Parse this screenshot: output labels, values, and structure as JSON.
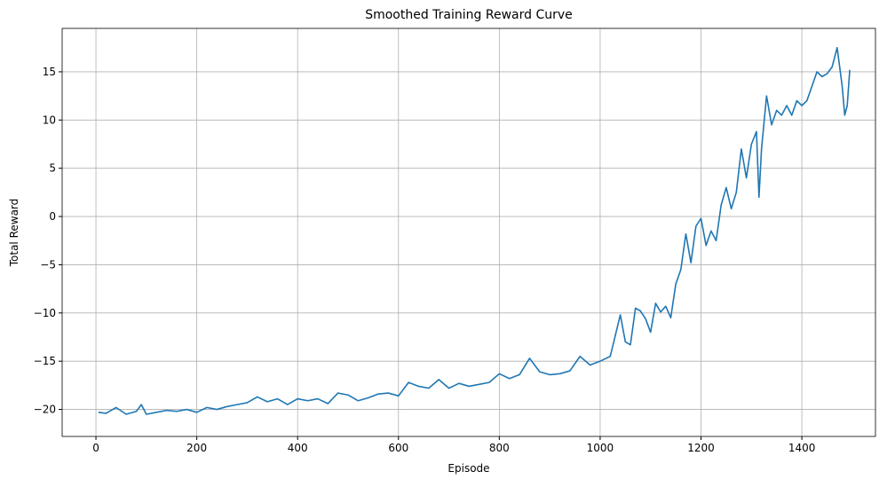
{
  "chart_data": {
    "type": "line",
    "title": "Smoothed Training Reward Curve",
    "x_label": "Episode",
    "y_label": "Total Reward",
    "x": [
      5,
      20,
      40,
      60,
      80,
      90,
      100,
      120,
      140,
      160,
      180,
      200,
      220,
      240,
      260,
      280,
      300,
      320,
      340,
      360,
      380,
      400,
      420,
      440,
      460,
      480,
      500,
      520,
      540,
      560,
      580,
      600,
      620,
      640,
      660,
      680,
      700,
      720,
      740,
      760,
      780,
      800,
      820,
      840,
      860,
      880,
      900,
      920,
      940,
      960,
      980,
      1000,
      1020,
      1040,
      1050,
      1060,
      1070,
      1080,
      1090,
      1100,
      1110,
      1120,
      1130,
      1140,
      1150,
      1160,
      1170,
      1180,
      1190,
      1200,
      1210,
      1220,
      1230,
      1240,
      1250,
      1260,
      1270,
      1280,
      1290,
      1300,
      1310,
      1315,
      1320,
      1330,
      1340,
      1350,
      1360,
      1370,
      1380,
      1390,
      1400,
      1410,
      1420,
      1430,
      1440,
      1450,
      1460,
      1470,
      1475,
      1480,
      1485,
      1490,
      1495
    ],
    "values": [
      -20.3,
      -20.4,
      -19.8,
      -20.5,
      -20.2,
      -19.5,
      -20.5,
      -20.3,
      -20.1,
      -20.2,
      -20.0,
      -20.3,
      -19.8,
      -20.0,
      -19.7,
      -19.5,
      -19.3,
      -18.7,
      -19.2,
      -18.9,
      -19.5,
      -18.9,
      -19.1,
      -18.9,
      -19.4,
      -18.3,
      -18.5,
      -19.1,
      -18.8,
      -18.4,
      -18.3,
      -18.6,
      -17.2,
      -17.6,
      -17.8,
      -16.9,
      -17.8,
      -17.3,
      -17.6,
      -17.4,
      -17.2,
      -16.3,
      -16.8,
      -16.4,
      -14.7,
      -16.1,
      -16.4,
      -16.3,
      -16.0,
      -14.5,
      -15.4,
      -15.0,
      -14.5,
      -10.2,
      -13.0,
      -13.3,
      -9.5,
      -9.8,
      -10.6,
      -12.0,
      -9.0,
      -9.9,
      -9.3,
      -10.5,
      -7.0,
      -5.5,
      -1.8,
      -4.8,
      -1.0,
      -0.2,
      -3.0,
      -1.5,
      -2.5,
      1.2,
      3.0,
      0.8,
      2.5,
      7.0,
      4.0,
      7.5,
      8.8,
      2.0,
      7.0,
      12.5,
      9.5,
      11.0,
      10.5,
      11.5,
      10.5,
      12.0,
      11.5,
      12.0,
      13.5,
      15.0,
      14.5,
      14.8,
      15.5,
      17.5,
      15.5,
      13.5,
      10.5,
      11.5,
      15.2
    ],
    "color": "#1f77b4",
    "xlim": [
      -67,
      1546
    ],
    "ylim": [
      -22.8,
      19.5
    ],
    "xticks": [
      0,
      200,
      400,
      600,
      800,
      1000,
      1200,
      1400
    ],
    "yticks": [
      {
        "value": -20,
        "label": "−20"
      },
      {
        "value": -15,
        "label": "−15"
      },
      {
        "value": -10,
        "label": "−10"
      },
      {
        "value": -5,
        "label": "−5"
      },
      0,
      5,
      10,
      15
    ],
    "grid": true
  }
}
